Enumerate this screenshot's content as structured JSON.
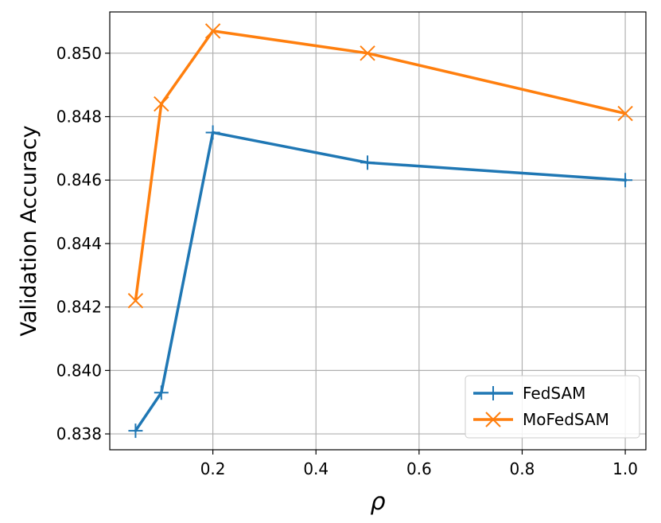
{
  "chart_data": {
    "type": "line",
    "title": "",
    "xlabel": "ρ",
    "ylabel": "Validation Accuracy",
    "xlim": [
      0.0,
      1.04
    ],
    "ylim": [
      0.8375,
      0.8513
    ],
    "xticks": [
      0.2,
      0.4,
      0.6,
      0.8,
      1.0
    ],
    "xtick_labels": [
      "0.2",
      "0.4",
      "0.6",
      "0.8",
      "1.0"
    ],
    "yticks": [
      0.838,
      0.84,
      0.842,
      0.844,
      0.846,
      0.848,
      0.85
    ],
    "ytick_labels": [
      "0.838",
      "0.840",
      "0.842",
      "0.844",
      "0.846",
      "0.848",
      "0.850"
    ],
    "grid": true,
    "legend_position": "lower-right",
    "series": [
      {
        "name": "FedSAM",
        "color": "#1f77b4",
        "marker": "plus",
        "x": [
          0.05,
          0.1,
          0.2,
          0.5,
          1.0
        ],
        "y": [
          0.8381,
          0.8393,
          0.8475,
          0.84655,
          0.846
        ]
      },
      {
        "name": "MoFedSAM",
        "color": "#ff7f0e",
        "marker": "x",
        "x": [
          0.05,
          0.1,
          0.2,
          0.5,
          1.0
        ],
        "y": [
          0.8422,
          0.8484,
          0.8507,
          0.85,
          0.8481
        ]
      }
    ]
  }
}
